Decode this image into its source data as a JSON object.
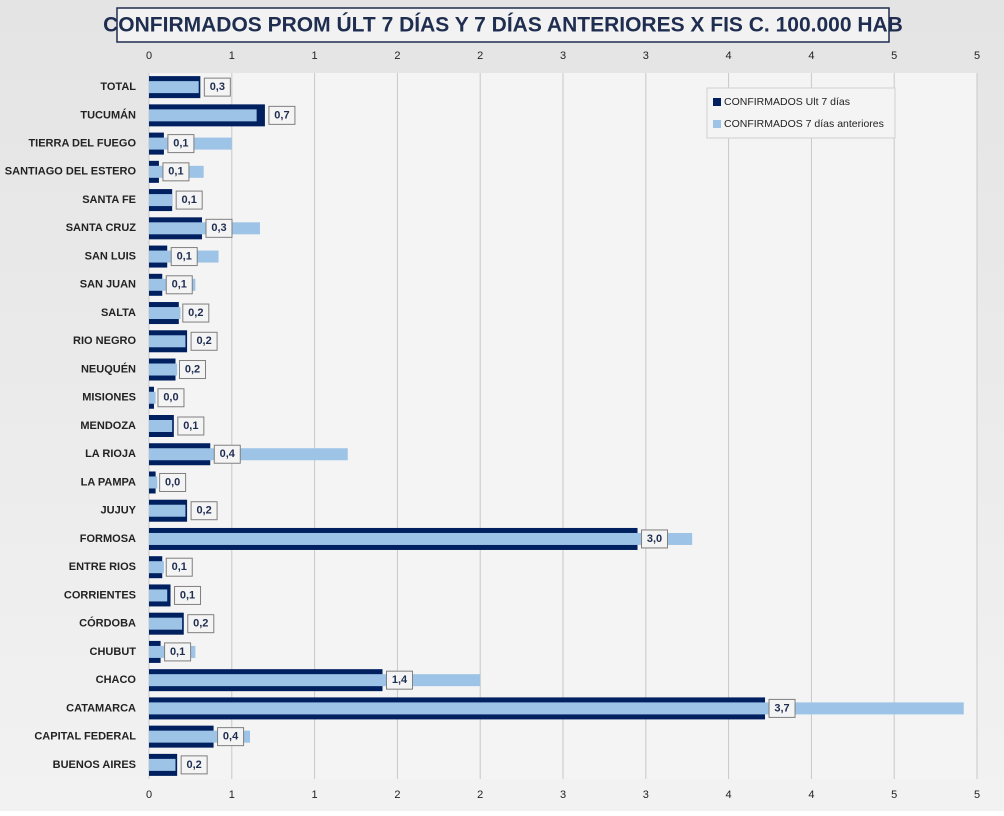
{
  "chart_data": {
    "type": "bar",
    "orientation": "horizontal",
    "title": "CONFIRMADOS PROM ÚLT 7 DÍAS Y 7 DÍAS ANTERIORES X FIS C. 100.000 HAB",
    "categories": [
      "TOTAL",
      "TUCUMÁN",
      "TIERRA  DEL FUEGO",
      "SANTIAGO  DEL ESTERO",
      "SANTA FE",
      "SANTA CRUZ",
      "SAN LUIS",
      "SAN JUAN",
      "SALTA",
      "RIO NEGRO",
      "NEUQUÉN",
      "MISIONES",
      "MENDOZA",
      "LA RIOJA",
      "LA PAMPA",
      "JUJUY",
      "FORMOSA",
      "ENTRE RIOS",
      "CORRIENTES",
      "CÓRDOBA",
      "CHUBUT",
      "CHACO",
      "CATAMARCA",
      "CAPITAL FEDERAL",
      "BUENOS AIRES"
    ],
    "series": [
      {
        "name": "CONFIRMADOS Ult 7 días",
        "color": "#002060",
        "values": [
          0.31,
          0.7,
          0.09,
          0.06,
          0.14,
          0.32,
          0.11,
          0.08,
          0.18,
          0.23,
          0.16,
          0.03,
          0.15,
          0.37,
          0.04,
          0.23,
          2.95,
          0.08,
          0.13,
          0.21,
          0.07,
          1.41,
          3.72,
          0.39,
          0.17
        ],
        "value_labels": [
          "0,3",
          "0,7",
          "0,1",
          "0,1",
          "0,1",
          "0,3",
          "0,1",
          "0,1",
          "0,2",
          "0,2",
          "0,2",
          "0,0",
          "0,1",
          "0,4",
          "0,0",
          "0,2",
          "3,0",
          "0,1",
          "0,1",
          "0,2",
          "0,1",
          "1,4",
          "3,7",
          "0,4",
          "0,2"
        ]
      },
      {
        "name": "CONFIRMADOS 7 días anteriores",
        "color": "#9dc3e6",
        "values": [
          0.3,
          0.65,
          0.5,
          0.33,
          0.14,
          0.67,
          0.42,
          0.28,
          0.19,
          0.22,
          0.17,
          0.04,
          0.14,
          1.2,
          0.05,
          0.22,
          3.28,
          0.09,
          0.11,
          0.2,
          0.28,
          2.0,
          4.92,
          0.61,
          0.16
        ]
      }
    ],
    "xlim": [
      0,
      5
    ],
    "xticks": [
      0,
      {
        "value": 0.5,
        "label": "1"
      },
      1,
      {
        "value": 1.5,
        "label": "2"
      },
      2,
      {
        "value": 2.5,
        "label": "3"
      },
      3,
      {
        "value": 3.5,
        "label": "4"
      },
      4,
      {
        "value": 4.5,
        "label": "5"
      },
      5
    ],
    "grid": true,
    "legend": "top-right"
  }
}
